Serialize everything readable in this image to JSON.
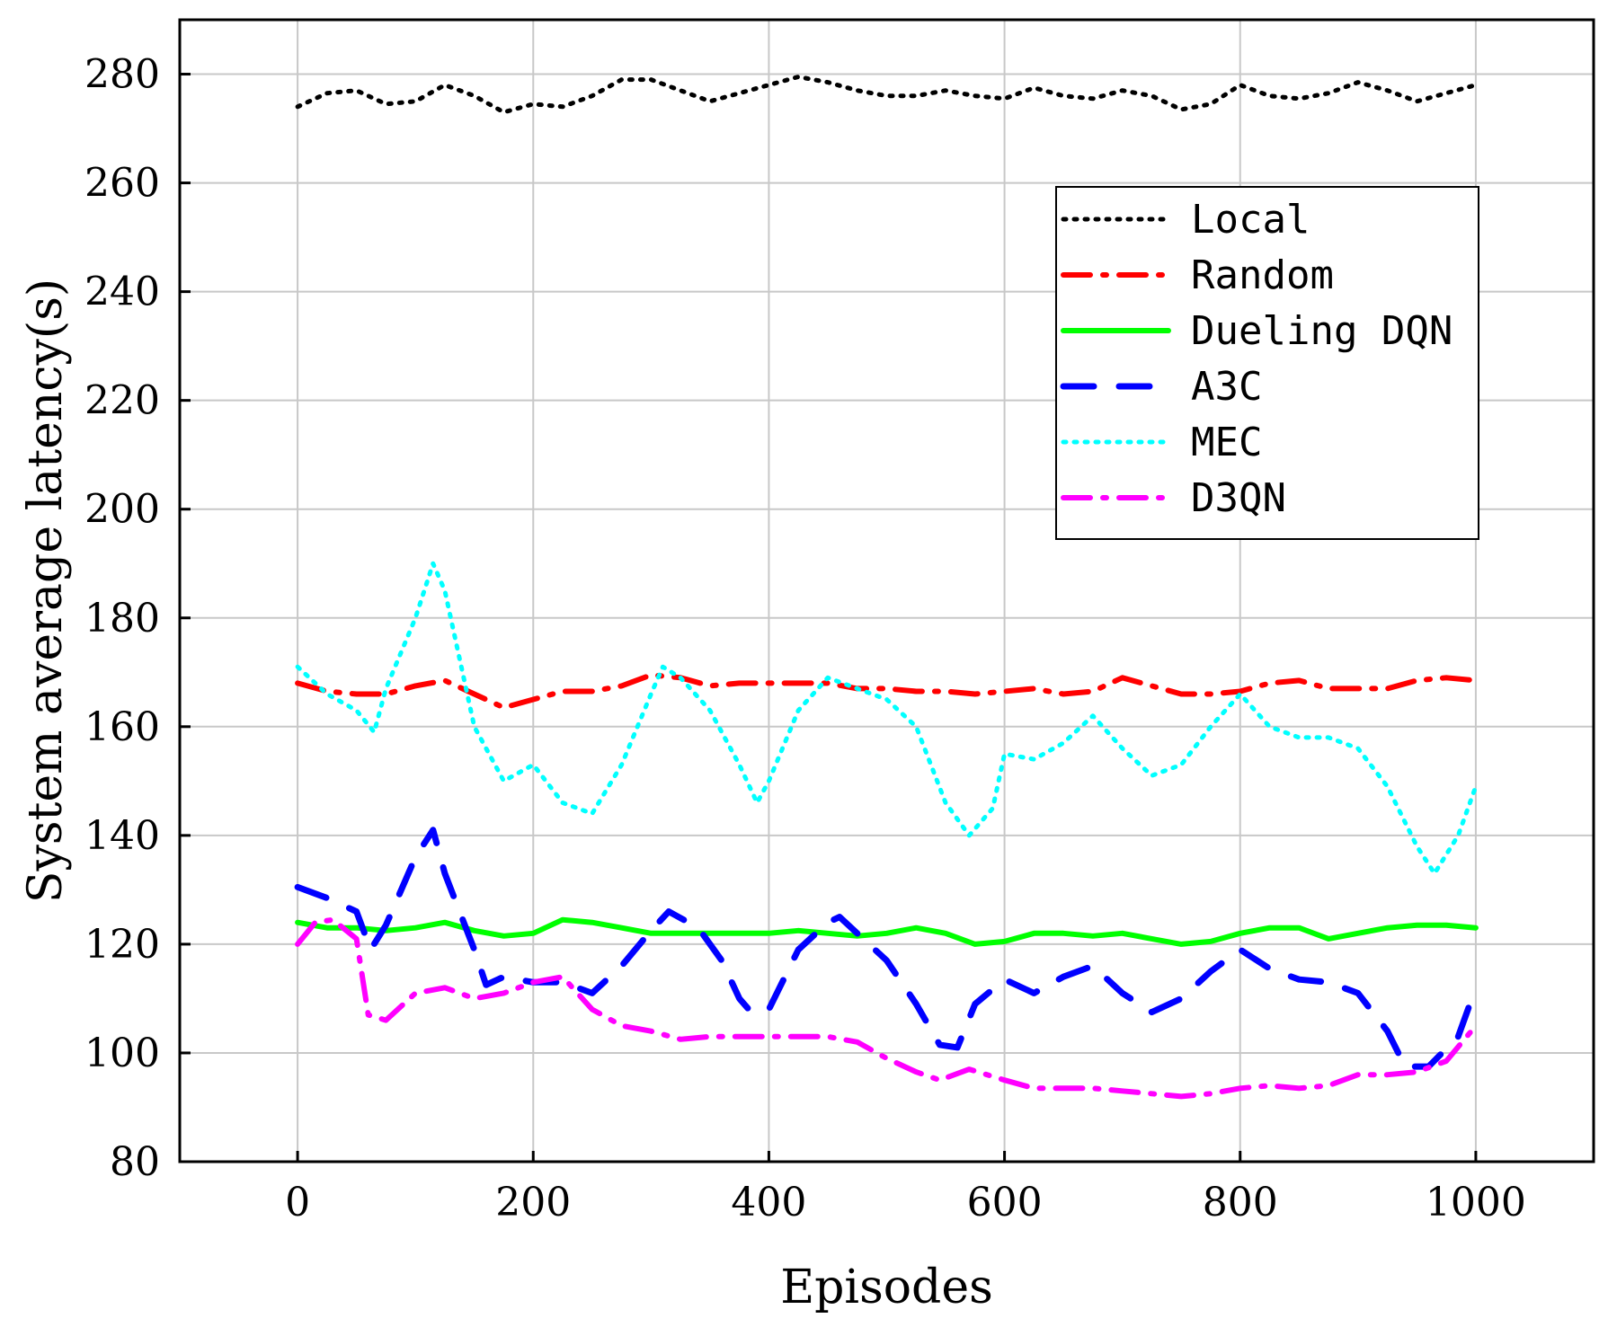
{
  "chart_data": {
    "type": "line",
    "title": "",
    "xlabel": "Episodes",
    "ylabel": "System average latency(s)",
    "xlim": [
      -100,
      1100
    ],
    "ylim": [
      80,
      290
    ],
    "xticks": [
      0,
      200,
      400,
      600,
      800,
      1000
    ],
    "yticks": [
      80,
      100,
      120,
      140,
      160,
      180,
      200,
      220,
      240,
      260,
      280
    ],
    "grid": true,
    "legend_position": "top-right",
    "series": [
      {
        "name": "Local",
        "color": "#000000",
        "style": "dotted",
        "x": [
          0,
          25,
          50,
          75,
          100,
          125,
          150,
          175,
          200,
          225,
          250,
          275,
          300,
          325,
          350,
          375,
          400,
          425,
          450,
          475,
          500,
          525,
          550,
          575,
          600,
          625,
          650,
          675,
          700,
          725,
          750,
          775,
          800,
          825,
          850,
          875,
          900,
          925,
          950,
          975,
          1000
        ],
        "y": [
          274,
          276.5,
          277,
          274.5,
          275,
          278,
          276,
          273,
          274.5,
          274,
          276,
          279,
          279,
          277,
          275,
          276.5,
          278,
          279.5,
          278.5,
          277,
          276,
          276,
          277,
          276,
          275.5,
          277.5,
          276,
          275.5,
          277,
          276,
          273.5,
          274.5,
          278,
          276,
          275.5,
          276.5,
          278.5,
          277,
          275,
          276.5,
          278
        ]
      },
      {
        "name": "Random",
        "color": "#ff0000",
        "style": "dashdot",
        "x": [
          0,
          25,
          50,
          75,
          100,
          125,
          150,
          175,
          200,
          225,
          250,
          275,
          300,
          325,
          350,
          375,
          400,
          425,
          450,
          475,
          500,
          525,
          550,
          575,
          600,
          625,
          650,
          675,
          700,
          725,
          750,
          775,
          800,
          825,
          850,
          875,
          900,
          925,
          950,
          975,
          1000
        ],
        "y": [
          168,
          166.5,
          166,
          166,
          167.5,
          168.5,
          166,
          163.5,
          165,
          166.5,
          166.5,
          167.5,
          169.5,
          169,
          167.5,
          168,
          168,
          168,
          168,
          167,
          167,
          166.5,
          166.5,
          166,
          166.5,
          167,
          166,
          166.5,
          169,
          167.5,
          166,
          166,
          166.5,
          168,
          168.5,
          167,
          167,
          167,
          168.5,
          169,
          168.5
        ]
      },
      {
        "name": "Dueling DQN",
        "color": "#00ff00",
        "style": "solid",
        "x": [
          0,
          25,
          50,
          75,
          100,
          125,
          150,
          175,
          200,
          225,
          250,
          275,
          300,
          325,
          350,
          375,
          400,
          425,
          450,
          475,
          500,
          525,
          550,
          575,
          600,
          625,
          650,
          675,
          700,
          725,
          750,
          775,
          800,
          825,
          850,
          875,
          900,
          925,
          950,
          975,
          1000
        ],
        "y": [
          124,
          123,
          123,
          122.5,
          123,
          124,
          122.5,
          121.5,
          122,
          124.5,
          124,
          123,
          122,
          122,
          122,
          122,
          122,
          122.5,
          122,
          121.5,
          122,
          123,
          122,
          120,
          120.5,
          122,
          122,
          121.5,
          122,
          121,
          120,
          120.5,
          122,
          123,
          123,
          121,
          122,
          123,
          123.5,
          123.5,
          123
        ]
      },
      {
        "name": "A3C",
        "color": "#0000ff",
        "style": "dashed",
        "x": [
          0,
          25,
          50,
          62,
          75,
          100,
          115,
          125,
          150,
          160,
          175,
          200,
          225,
          250,
          275,
          300,
          315,
          340,
          360,
          375,
          385,
          400,
          425,
          450,
          460,
          475,
          500,
          525,
          545,
          560,
          575,
          600,
          625,
          650,
          675,
          700,
          725,
          750,
          775,
          800,
          825,
          850,
          875,
          900,
          925,
          940,
          960,
          985,
          1000
        ],
        "y": [
          130.5,
          128.5,
          126,
          119,
          123.5,
          136,
          141,
          133,
          119,
          112.5,
          114,
          113,
          113,
          111,
          116,
          122.5,
          126,
          123,
          117,
          110,
          107.5,
          108,
          119,
          124,
          125,
          122,
          117,
          109,
          101.5,
          101,
          109,
          113.5,
          111,
          114,
          116,
          111,
          107.5,
          110,
          115,
          119,
          115.5,
          113.5,
          113,
          111,
          104,
          97.5,
          97.5,
          103,
          112
        ]
      },
      {
        "name": "MEC",
        "color": "#00ffff",
        "style": "dotted",
        "x": [
          0,
          25,
          50,
          65,
          75,
          100,
          115,
          125,
          150,
          175,
          200,
          225,
          250,
          275,
          300,
          310,
          325,
          350,
          375,
          390,
          400,
          425,
          450,
          475,
          500,
          525,
          550,
          570,
          590,
          600,
          625,
          650,
          675,
          700,
          725,
          750,
          775,
          800,
          825,
          850,
          875,
          900,
          925,
          950,
          965,
          985,
          1000
        ],
        "y": [
          171,
          166,
          163,
          159,
          167,
          180,
          190,
          185,
          160,
          150,
          153,
          146,
          144,
          153,
          166,
          171,
          169,
          163,
          153,
          146,
          150,
          163,
          169,
          167,
          165,
          160,
          146,
          140,
          145,
          155,
          154,
          157,
          162,
          156,
          151,
          153,
          160,
          166,
          160,
          158,
          158,
          156,
          149,
          138,
          133,
          140,
          149
        ]
      },
      {
        "name": "D3QN",
        "color": "#ff00ff",
        "style": "dashdot",
        "x": [
          0,
          15,
          30,
          50,
          60,
          75,
          100,
          125,
          150,
          175,
          200,
          225,
          250,
          275,
          300,
          325,
          350,
          375,
          400,
          425,
          450,
          475,
          500,
          525,
          545,
          570,
          600,
          625,
          650,
          675,
          700,
          725,
          750,
          775,
          800,
          825,
          850,
          875,
          900,
          925,
          950,
          975,
          1000
        ],
        "y": [
          120,
          124,
          124.5,
          121,
          107,
          106,
          111,
          112,
          110,
          111,
          113,
          114,
          108,
          105,
          104,
          102.5,
          103,
          103,
          103,
          103,
          103,
          102,
          99,
          96.5,
          95,
          97,
          95,
          93.5,
          93.5,
          93.5,
          93,
          92.5,
          92,
          92.5,
          93.5,
          94,
          93.5,
          94,
          96,
          96,
          96.5,
          98.5,
          105
        ]
      }
    ]
  }
}
